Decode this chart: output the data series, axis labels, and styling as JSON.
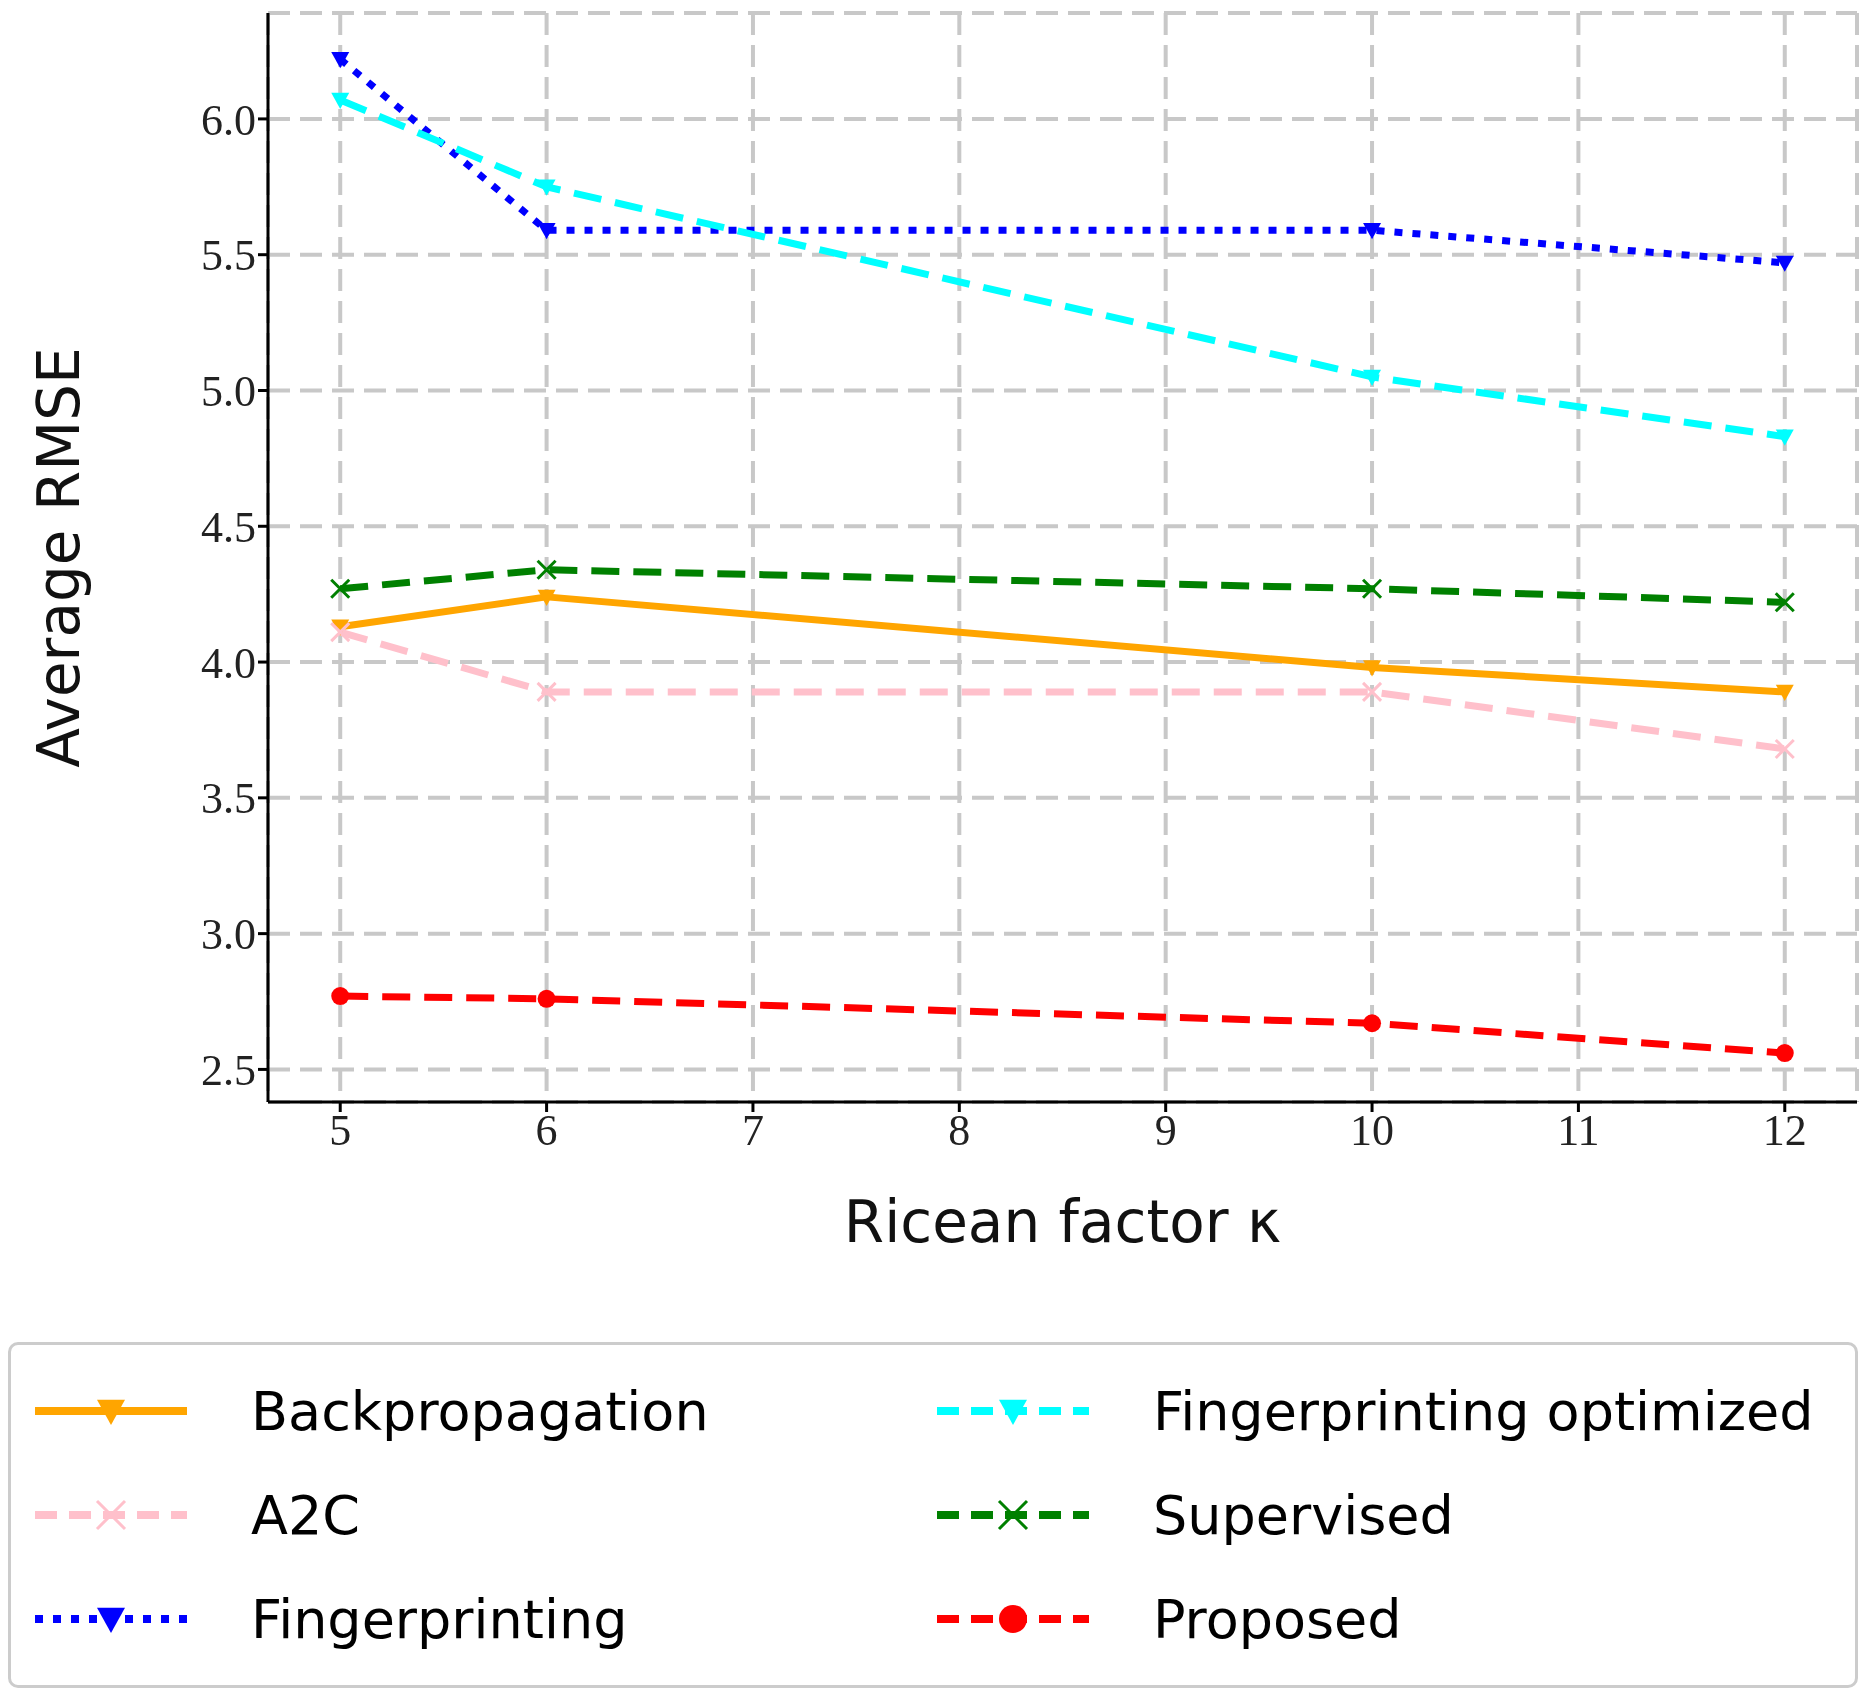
{
  "chart_data": {
    "type": "line",
    "xlabel": "Ricean factor κ",
    "ylabel": "Average RMSE",
    "x": [
      5,
      6,
      10,
      12
    ],
    "xlim": [
      4.65,
      12.35
    ],
    "xticks": [
      5,
      6,
      7,
      8,
      9,
      10,
      11,
      12
    ],
    "ylim": [
      2.38,
      6.39
    ],
    "yticks": [
      2.5,
      {
        "value": 3,
        "label": "3.0"
      },
      3.5,
      {
        "value": 4,
        "label": "4.0"
      },
      4.5,
      {
        "value": 5,
        "label": "5.0"
      },
      5.5,
      {
        "value": 6,
        "label": "6.0"
      }
    ],
    "grid": true,
    "legend": "bottom",
    "series": [
      {
        "name": "Backpropagation",
        "color": "#ffa500",
        "values": [
          4.13,
          4.24,
          3.98,
          3.89
        ],
        "marker": "triangle",
        "line_style": "solid"
      },
      {
        "name": "A2C",
        "color": "#ffc0cb",
        "values": [
          4.11,
          3.89,
          3.89,
          3.68
        ],
        "marker": "cross",
        "line_style": "dashed"
      },
      {
        "name": "Fingerprinting",
        "color": "#0000ff",
        "values": [
          6.22,
          5.59,
          5.59,
          5.47
        ],
        "marker": "triangle",
        "line_style": "dotted"
      },
      {
        "name": "Fingerprinting optimized",
        "color": "#00ffff",
        "values": [
          6.07,
          5.75,
          5.05,
          4.83
        ],
        "marker": "triangle",
        "line_style": "dashed"
      },
      {
        "name": "Supervised",
        "color": "#008000",
        "values": [
          4.27,
          4.34,
          4.27,
          4.22
        ],
        "marker": "cross",
        "line_style": "dashed"
      },
      {
        "name": "Proposed",
        "color": "#ff0000",
        "values": [
          2.77,
          2.76,
          2.67,
          2.56
        ],
        "marker": "circle",
        "line_style": "dashed"
      }
    ]
  }
}
